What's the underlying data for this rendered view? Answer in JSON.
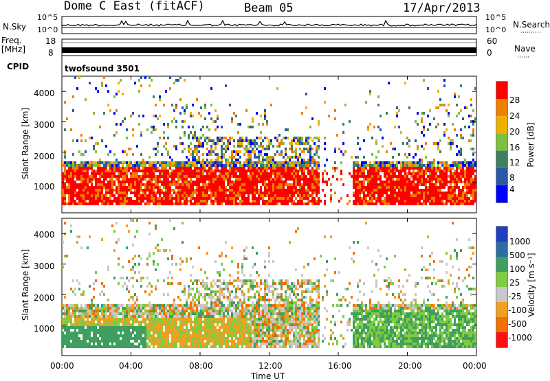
{
  "header": {
    "station": "Dome C East (fitACF)",
    "beam": "Beam 05",
    "date": "17/Apr/2013"
  },
  "strips": {
    "nsky_label": "N.Sky",
    "nsearch_label": "N.Search",
    "freq_label_1": "Freq.",
    "freq_label_2": "[MHz]",
    "nave_label": "Nave",
    "cpid_label": "CPID",
    "cpid_value": "twofsound 3501",
    "nsky_ticks": [
      "10^5",
      "10^0"
    ],
    "freq_ticks_left": [
      "18",
      "8"
    ],
    "freq_ticks_right": [
      "60",
      "0"
    ]
  },
  "chart_data": [
    {
      "type": "heatmap",
      "ylabel": "Slant Range [km]",
      "xlabel": "",
      "y_ticks": [
        "4000",
        "3000",
        "2000",
        "1000"
      ],
      "x_ticks": [
        "00:00",
        "04:00",
        "08:00",
        "12:00",
        "16:00",
        "20:00",
        "00:00"
      ],
      "colorbar_label": "Power [dB]",
      "colorbar_ticks": [
        "28",
        "24",
        "20",
        "16",
        "12",
        "8",
        "4"
      ],
      "colors": [
        "#0000ff",
        "#2a58a8",
        "#3f7f5f",
        "#7fc040",
        "#f0b000",
        "#f08000",
        "#ff0000"
      ]
    },
    {
      "type": "heatmap",
      "ylabel": "Slant Range [km]",
      "xlabel": "Time UT",
      "y_ticks": [
        "4000",
        "3000",
        "2000",
        "1000"
      ],
      "x_ticks": [
        "00:00",
        "04:00",
        "08:00",
        "12:00",
        "16:00",
        "20:00",
        "00:00"
      ],
      "colorbar_label": "Velocity [m s⁻¹]",
      "colorbar_ticks": [
        "1000",
        "500",
        "100",
        "25",
        "-25",
        "-100",
        "-500",
        "-1000"
      ],
      "colors": [
        "#1f3fbf",
        "#2a6fa0",
        "#3f9f5f",
        "#7fcc40",
        "#c8c8c8",
        "#f0a020",
        "#f07000",
        "#ff1010"
      ]
    }
  ]
}
